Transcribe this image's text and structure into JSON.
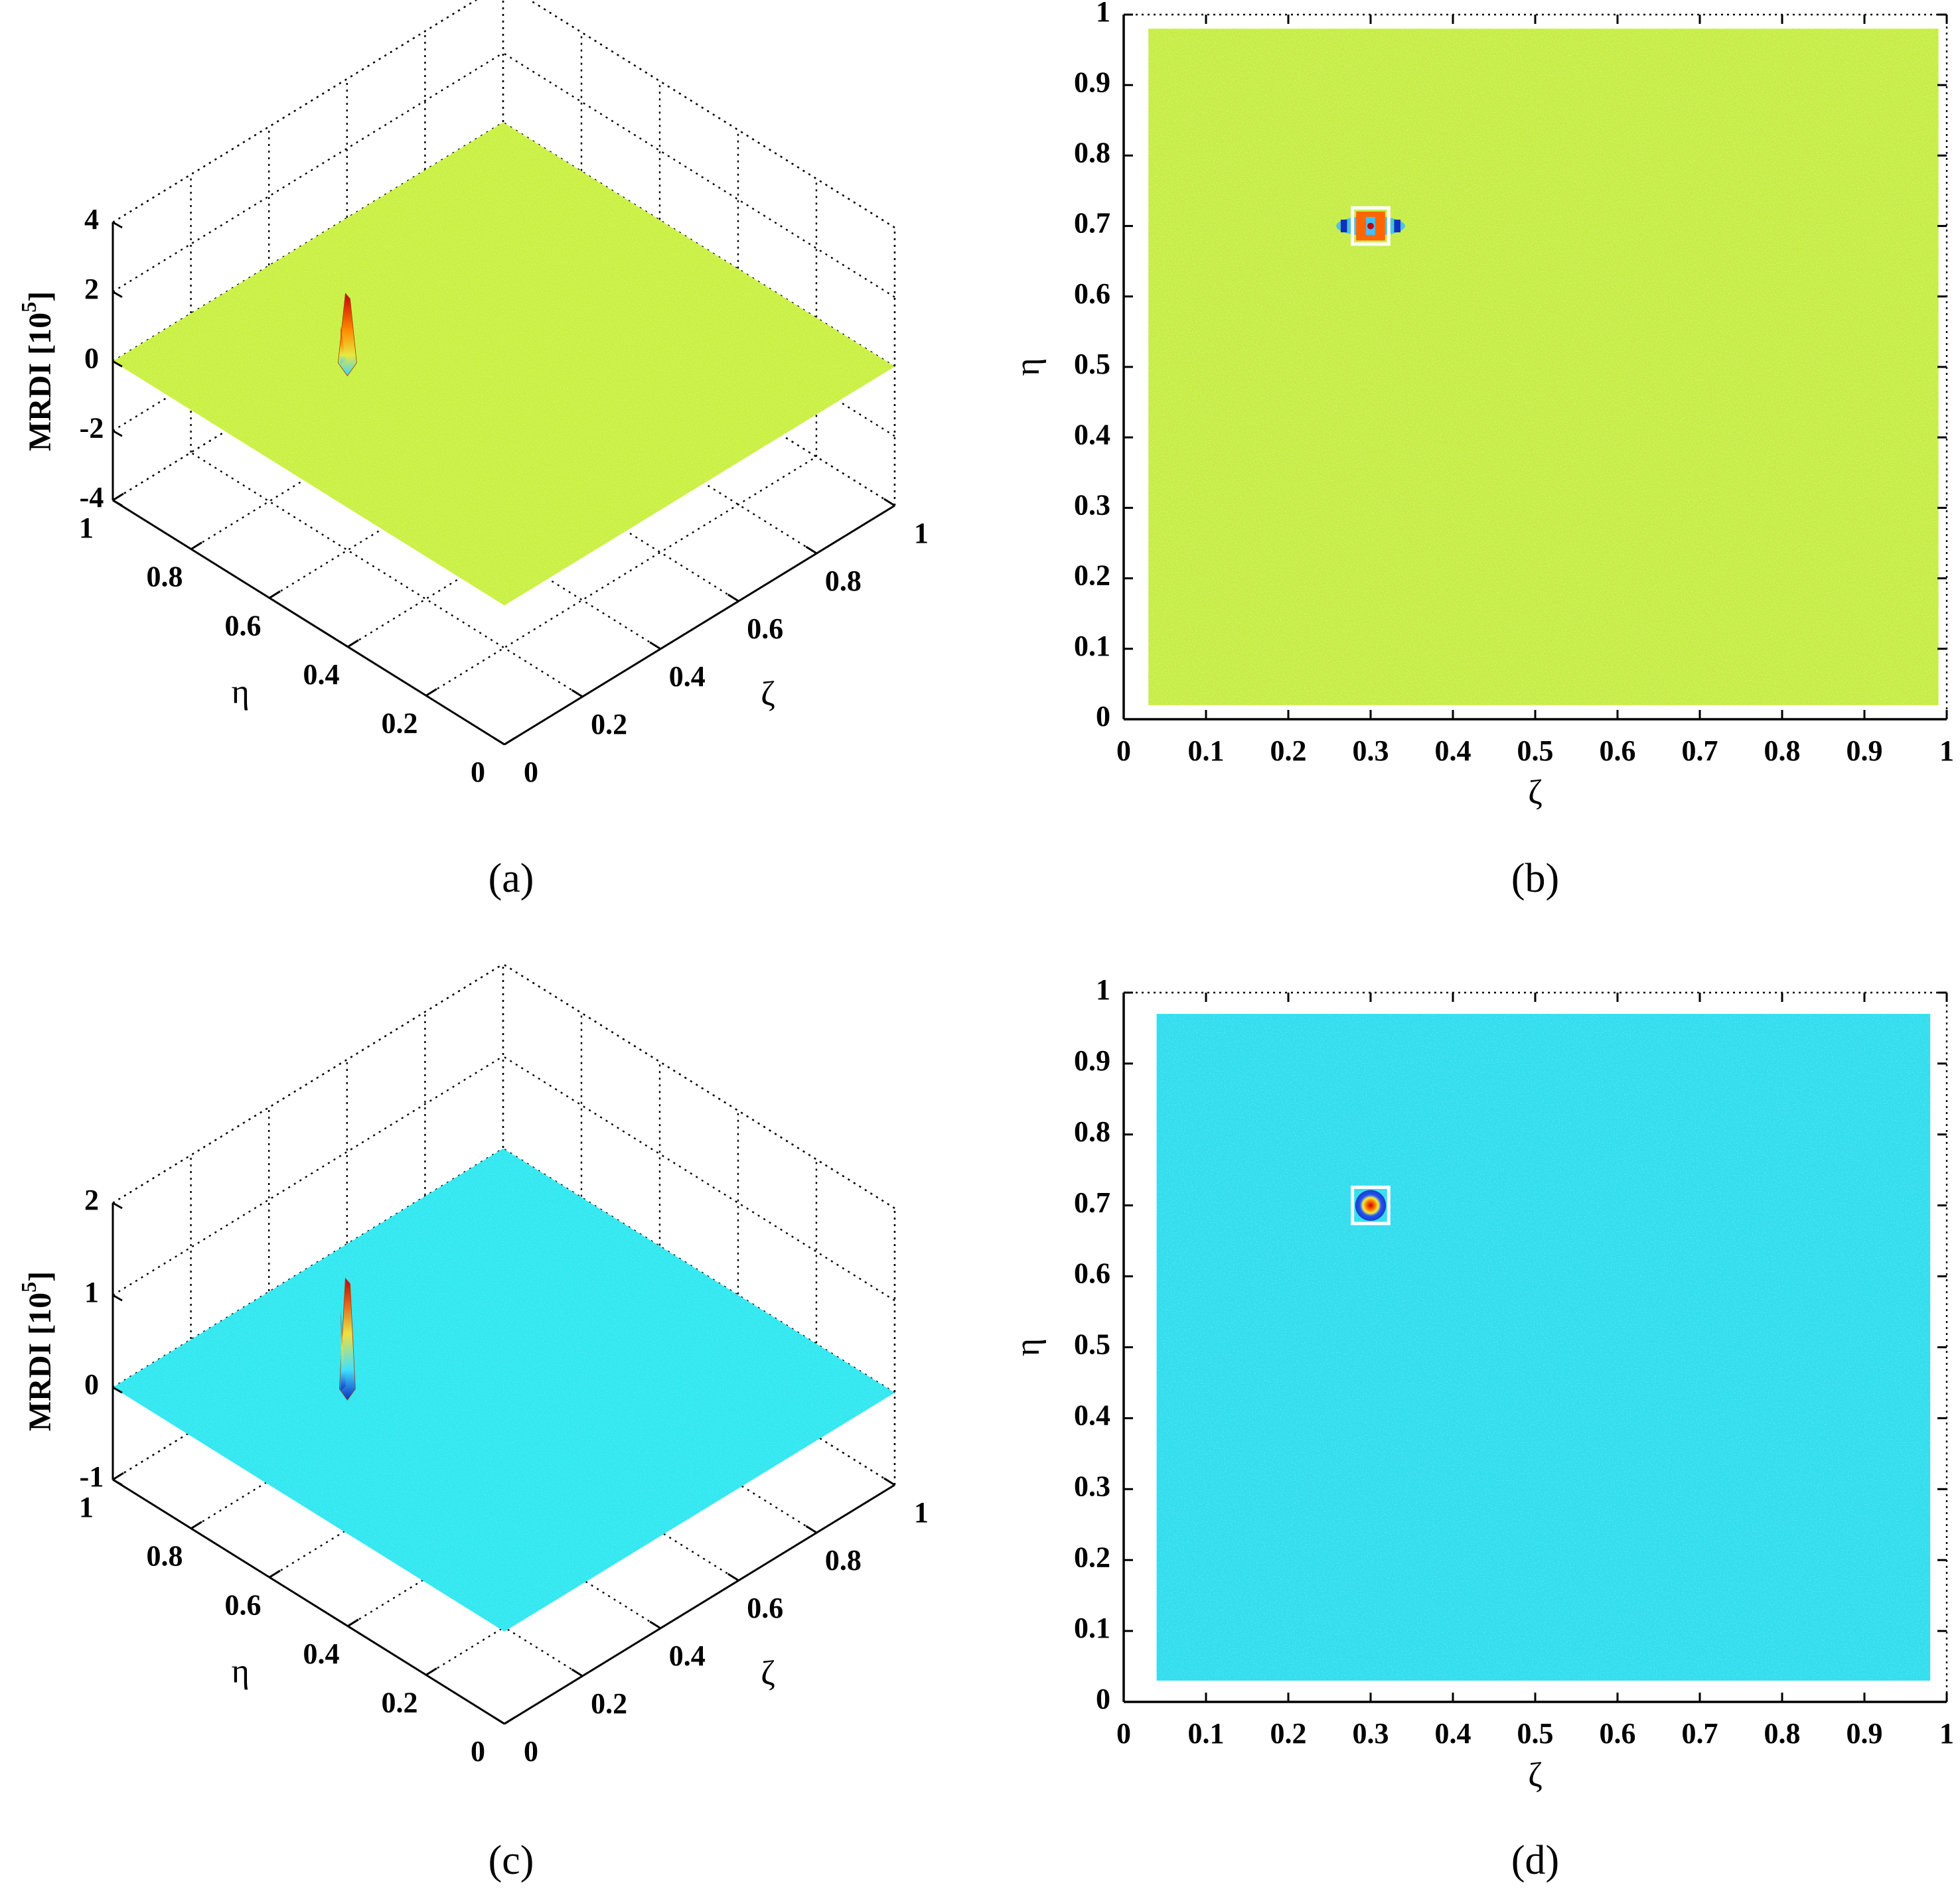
{
  "chart_data": [
    {
      "panel": "(a)",
      "type": "surface3d",
      "zlabel": "MRDI [10",
      "zlabel_exponent": "5",
      "zlabel_close": "]",
      "xlabel": "ζ",
      "ylabel": "η",
      "zlim": [
        -4,
        4
      ],
      "z_ticks": [
        "4",
        "2",
        "0",
        "-2",
        "-4"
      ],
      "z_tick_values": [
        4,
        2,
        0,
        -2,
        -4
      ],
      "x_ticks": [
        "0",
        "0.2",
        "0.4",
        "0.6",
        "0.8",
        "1"
      ],
      "y_ticks": [
        "0",
        "0.2",
        "0.4",
        "0.6",
        "0.8",
        "1"
      ],
      "surface_level": 0,
      "surface_color": "#c8f040",
      "peak": {
        "x": 0.3,
        "y": 0.7,
        "z": 2.0
      },
      "grid": true
    },
    {
      "panel": "(b)",
      "type": "heatmap",
      "xlabel": "ζ",
      "ylabel": "η",
      "x_ticks": [
        "0",
        "0.1",
        "0.2",
        "0.3",
        "0.4",
        "0.5",
        "0.6",
        "0.7",
        "0.8",
        "0.9",
        "1"
      ],
      "y_ticks": [
        "0",
        "0.1",
        "0.2",
        "0.3",
        "0.4",
        "0.5",
        "0.6",
        "0.7",
        "0.8",
        "0.9",
        "1"
      ],
      "xlim": [
        0,
        1
      ],
      "ylim": [
        0,
        1
      ],
      "field_extent": {
        "x": [
          0.03,
          0.99
        ],
        "y": [
          0.02,
          0.98
        ]
      },
      "field_color": "#c4ec44",
      "marker": {
        "x": 0.3,
        "y": 0.7,
        "halfwidth": 0.022
      },
      "grid": false
    },
    {
      "panel": "(c)",
      "type": "surface3d",
      "zlabel": "MRDI [10",
      "zlabel_exponent": "5",
      "zlabel_close": "]",
      "xlabel": "ζ",
      "ylabel": "η",
      "zlim": [
        -1,
        2
      ],
      "z_ticks": [
        "2",
        "1",
        "0",
        "-1"
      ],
      "z_tick_values": [
        2,
        1,
        0,
        -1
      ],
      "x_ticks": [
        "0",
        "0.2",
        "0.4",
        "0.6",
        "0.8",
        "1"
      ],
      "y_ticks": [
        "0",
        "0.2",
        "0.4",
        "0.6",
        "0.8",
        "1"
      ],
      "surface_level": 0,
      "surface_color": "#33e8f0",
      "peak": {
        "x": 0.3,
        "y": 0.7,
        "z": 1.2
      },
      "grid": true
    },
    {
      "panel": "(d)",
      "type": "heatmap",
      "xlabel": "ζ",
      "ylabel": "η",
      "x_ticks": [
        "0",
        "0.1",
        "0.2",
        "0.3",
        "0.4",
        "0.5",
        "0.6",
        "0.7",
        "0.8",
        "0.9",
        "1"
      ],
      "y_ticks": [
        "0",
        "0.1",
        "0.2",
        "0.3",
        "0.4",
        "0.5",
        "0.6",
        "0.7",
        "0.8",
        "0.9",
        "1"
      ],
      "xlim": [
        0,
        1
      ],
      "ylim": [
        0,
        1
      ],
      "field_extent": {
        "x": [
          0.04,
          0.98
        ],
        "y": [
          0.03,
          0.97
        ]
      },
      "field_color": "#33ddee",
      "marker": {
        "x": 0.3,
        "y": 0.7,
        "halfwidth": 0.022
      },
      "grid": false
    }
  ]
}
